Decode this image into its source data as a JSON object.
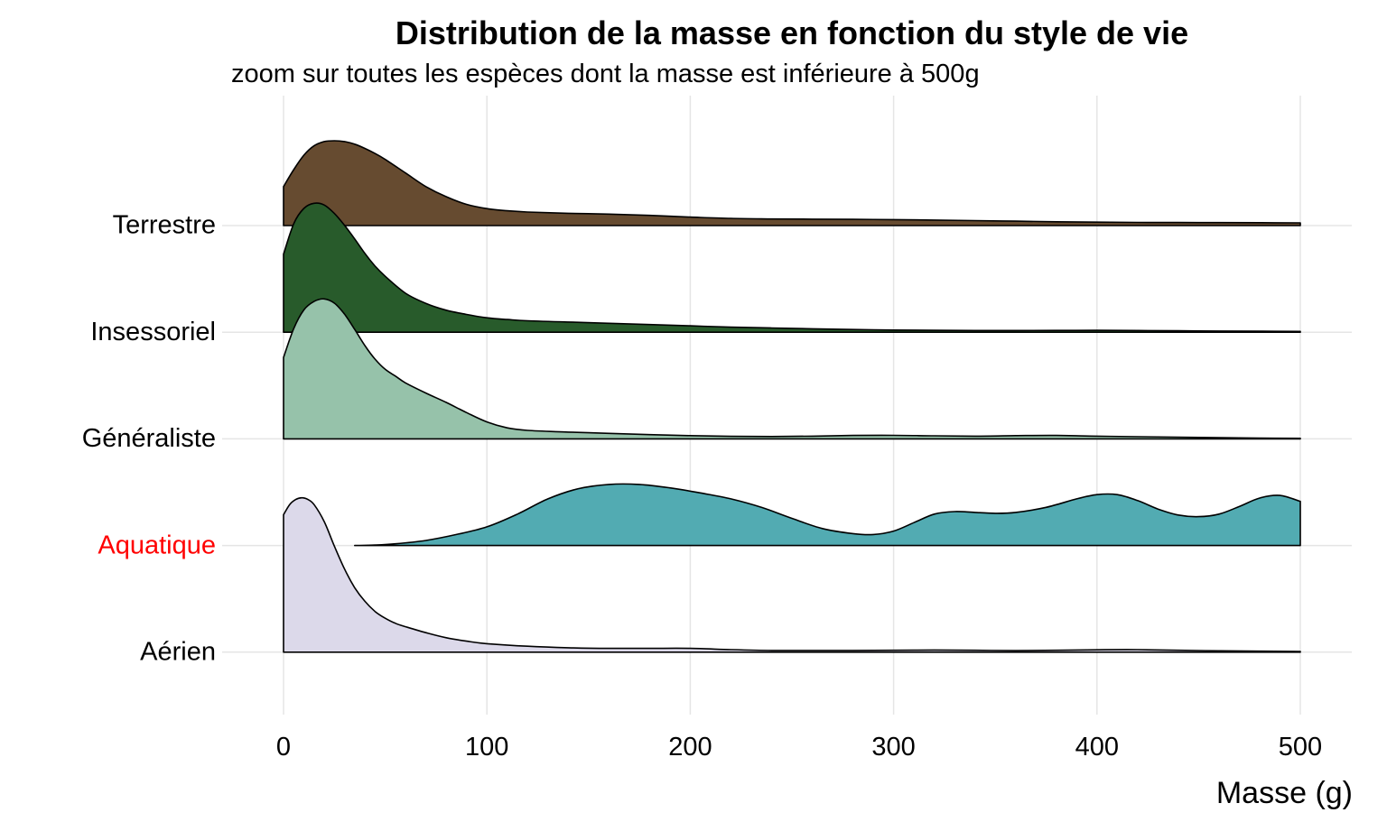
{
  "chart_data": {
    "type": "ridgeline",
    "title": "Distribution de la masse en fonction du style de vie",
    "subtitle": "zoom sur toutes les espèces dont la masse est inférieure à 500g",
    "xlabel": "Masse (g)",
    "ylabel": "",
    "xlim": [
      0,
      500
    ],
    "x_ticks": [
      "0",
      "100",
      "200",
      "300",
      "400",
      "500"
    ],
    "grid": true,
    "legend": "none",
    "categories": [
      "Terrestre",
      "Insessoriel",
      "Généraliste",
      "Aquatique",
      "Aérien"
    ],
    "highlight": {
      "category": "Aquatique",
      "color": "#ff0000"
    },
    "series": [
      {
        "category": "Terrestre",
        "color": "#664b30",
        "x": [
          0,
          5,
          10,
          15,
          20,
          25,
          30,
          35,
          40,
          45,
          50,
          60,
          70,
          80,
          90,
          100,
          110,
          120,
          140,
          160,
          180,
          200,
          220,
          240,
          260,
          280,
          300,
          320,
          340,
          360,
          380,
          400,
          420,
          440,
          460,
          480,
          500
        ],
        "y": [
          0.46,
          0.66,
          0.83,
          0.94,
          0.99,
          1.0,
          0.99,
          0.96,
          0.91,
          0.85,
          0.78,
          0.62,
          0.46,
          0.34,
          0.25,
          0.2,
          0.175,
          0.16,
          0.145,
          0.135,
          0.12,
          0.1,
          0.085,
          0.078,
          0.075,
          0.073,
          0.07,
          0.065,
          0.058,
          0.052,
          0.045,
          0.04,
          0.037,
          0.036,
          0.035,
          0.034,
          0.032
        ]
      },
      {
        "category": "Insessoriel",
        "color": "#285b2b",
        "x": [
          0,
          5,
          10,
          15,
          20,
          25,
          30,
          35,
          40,
          45,
          50,
          60,
          70,
          80,
          90,
          100,
          110,
          120,
          140,
          160,
          180,
          200,
          220,
          240,
          260,
          280,
          300,
          320,
          340,
          360,
          380,
          400,
          420,
          440,
          460,
          480,
          500
        ],
        "y": [
          0.92,
          1.28,
          1.46,
          1.52,
          1.5,
          1.4,
          1.26,
          1.1,
          0.93,
          0.78,
          0.66,
          0.46,
          0.34,
          0.26,
          0.21,
          0.17,
          0.15,
          0.135,
          0.12,
          0.105,
          0.09,
          0.075,
          0.06,
          0.05,
          0.04,
          0.032,
          0.026,
          0.022,
          0.02,
          0.02,
          0.021,
          0.022,
          0.02,
          0.017,
          0.014,
          0.012,
          0.01
        ]
      },
      {
        "category": "Généraliste",
        "color": "#96c2aa",
        "x": [
          0,
          5,
          10,
          15,
          20,
          25,
          30,
          35,
          40,
          45,
          50,
          55,
          60,
          70,
          80,
          90,
          100,
          110,
          120,
          140,
          160,
          180,
          200,
          220,
          240,
          260,
          280,
          300,
          320,
          340,
          360,
          380,
          400,
          420,
          440,
          460,
          480,
          500
        ],
        "y": [
          0.96,
          1.3,
          1.52,
          1.62,
          1.65,
          1.6,
          1.47,
          1.29,
          1.1,
          0.94,
          0.82,
          0.74,
          0.66,
          0.54,
          0.43,
          0.31,
          0.2,
          0.13,
          0.1,
          0.08,
          0.065,
          0.05,
          0.038,
          0.03,
          0.028,
          0.032,
          0.04,
          0.042,
          0.036,
          0.032,
          0.038,
          0.04,
          0.032,
          0.025,
          0.02,
          0.015,
          0.01,
          0.006
        ]
      },
      {
        "category": "Aquatique",
        "color": "#52abb2",
        "x": [
          35,
          45,
          55,
          70,
          85,
          100,
          115,
          130,
          145,
          160,
          175,
          190,
          205,
          220,
          235,
          250,
          265,
          280,
          290,
          300,
          310,
          320,
          330,
          340,
          350,
          360,
          375,
          390,
          400,
          410,
          420,
          430,
          440,
          450,
          460,
          470,
          480,
          490,
          500
        ],
        "y": [
          0.0,
          0.005,
          0.02,
          0.06,
          0.13,
          0.22,
          0.37,
          0.55,
          0.67,
          0.72,
          0.72,
          0.68,
          0.62,
          0.55,
          0.45,
          0.32,
          0.2,
          0.14,
          0.13,
          0.17,
          0.27,
          0.37,
          0.4,
          0.39,
          0.38,
          0.39,
          0.45,
          0.55,
          0.6,
          0.6,
          0.53,
          0.43,
          0.36,
          0.34,
          0.37,
          0.46,
          0.56,
          0.59,
          0.52
        ]
      },
      {
        "category": "Aérien",
        "color": "#dcd9ea",
        "x": [
          0,
          3,
          6,
          9,
          12,
          15,
          20,
          25,
          30,
          35,
          40,
          45,
          50,
          55,
          60,
          70,
          80,
          90,
          100,
          120,
          140,
          160,
          180,
          200,
          220,
          240,
          260,
          280,
          300,
          320,
          340,
          360,
          380,
          400,
          420,
          440,
          460,
          480,
          500
        ],
        "y": [
          1.62,
          1.74,
          1.8,
          1.82,
          1.8,
          1.74,
          1.54,
          1.25,
          0.98,
          0.76,
          0.6,
          0.48,
          0.4,
          0.34,
          0.3,
          0.23,
          0.17,
          0.13,
          0.1,
          0.07,
          0.052,
          0.045,
          0.045,
          0.045,
          0.03,
          0.02,
          0.02,
          0.02,
          0.022,
          0.025,
          0.022,
          0.018,
          0.022,
          0.028,
          0.03,
          0.022,
          0.016,
          0.012,
          0.008
        ]
      }
    ]
  }
}
